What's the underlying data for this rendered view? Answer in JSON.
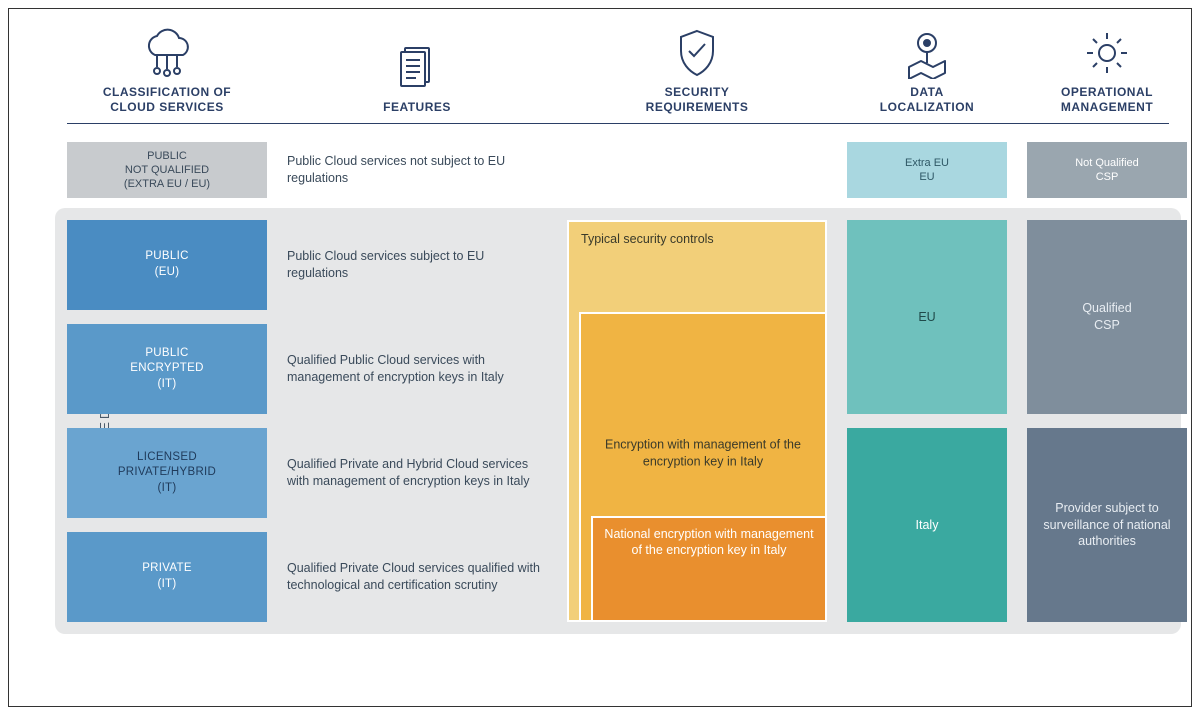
{
  "colors": {
    "heading": "#2b3f66",
    "text": "#3a4a5a",
    "rule": "#2b3f66",
    "qualified_bg": "#e6e7e8",
    "tag_not_qualified": "#c8cbce",
    "tag_public_eu": "#4a8cc2",
    "tag_public_encrypted": "#5a99c9",
    "tag_licensed": "#6aa4d0",
    "tag_private": "#5a99c9",
    "sec_outer": "#f2cf79",
    "sec_mid": "#f0b443",
    "sec_inner": "#e98f2e",
    "dl_extra_eu": "#a9d7e0",
    "dl_eu": "#6fc1bd",
    "dl_italy": "#3aa9a0",
    "om_not_qualified": "#9aa6af",
    "om_qualified": "#7f8e9c",
    "om_surveillance": "#66788c"
  },
  "typography": {
    "header_label_fontsize": 12,
    "body_fontsize": 12.5,
    "tag_fontsize": 11.5,
    "qualified_label_fontsize": 13
  },
  "header": {
    "col1": "CLASSIFICATION OF\nCLOUD SERVICES",
    "col2": "FEATURES",
    "col3": "SECURITY\nREQUIREMENTS",
    "col4": "DATA\nLOCALIZATION",
    "col5": "OPERATIONAL\nMANAGEMENT"
  },
  "row_not_qualified": {
    "tag": "PUBLIC\nNOT QUALIFIED\n(EXTRA EU / EU)",
    "feature": "Public Cloud services not subject to EU regulations",
    "dl": "Extra EU\nEU",
    "om": "Not Qualified\nCSP"
  },
  "qualified_label": "QUALIFIED CLOUD",
  "qualified_rows": [
    {
      "tag": "PUBLIC\n(EU)",
      "tag_color_key": "tag_public_eu",
      "tag_text_white": true,
      "feature": "Public Cloud services subject to EU regulations"
    },
    {
      "tag": "PUBLIC\nENCRYPTED\n(IT)",
      "tag_color_key": "tag_public_encrypted",
      "tag_text_white": true,
      "feature": "Qualified Public Cloud services with management of encryption keys in Italy"
    },
    {
      "tag": "LICENSED\nPRIVATE/HYBRID\n(IT)",
      "tag_color_key": "tag_licensed",
      "tag_text_white": false,
      "feature": "Qualified Private and Hybrid Cloud services with management of encryption keys in Italy"
    },
    {
      "tag": "PRIVATE\n(IT)",
      "tag_color_key": "tag_private",
      "tag_text_white": true,
      "feature": "Qualified Private Cloud services qualified with technological and certification scrutiny"
    }
  ],
  "security": {
    "outer": "Typical security controls",
    "mid": "Encryption with management of the encryption key in Italy",
    "inner": "National encryption with management of the encryption key in Italy"
  },
  "data_localization": {
    "eu": "EU",
    "italy": "Italy"
  },
  "operational_management": {
    "qualified": "Qualified\nCSP",
    "surveillance": "Provider subject to surveillance of national authorities"
  }
}
